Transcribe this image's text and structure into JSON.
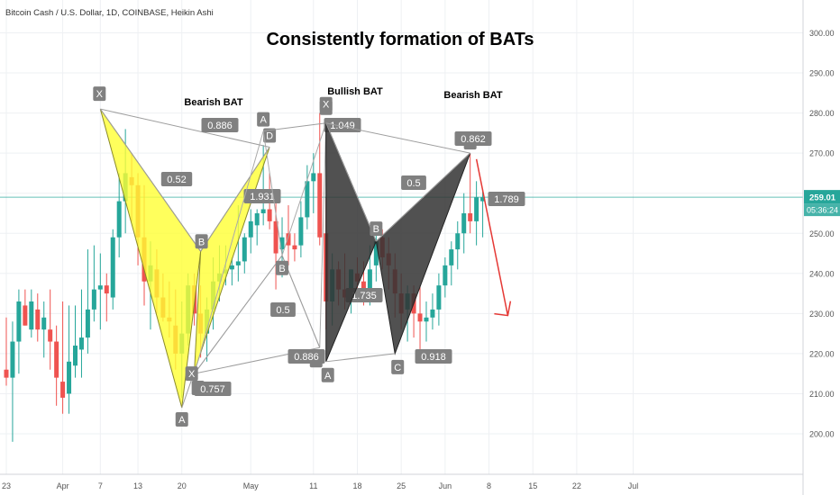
{
  "header": {
    "symbol_line": "Bitcoin Cash / U.S. Dollar, 1D, COINBASE, Heikin Ashi",
    "title": "Consistently formation of BATs"
  },
  "chart_data": {
    "type": "candlestick",
    "chart_style": "Heikin Ashi",
    "ylim": [
      191,
      309
    ],
    "y_axis_position": "right",
    "grid": true,
    "y_ticks": [
      200,
      210,
      220,
      230,
      240,
      250,
      260,
      270,
      280,
      290,
      300
    ],
    "y_tick_labels": [
      "200.00",
      "210.00",
      "220.00",
      "230.00",
      "240.00",
      "250.00",
      "260.00",
      "270.00",
      "280.00",
      "290.00",
      "300.00"
    ],
    "x_tick_labels": [
      {
        "label": "23",
        "date": "2019-03-23"
      },
      {
        "label": "Apr",
        "date": "2019-04-01"
      },
      {
        "label": "7",
        "date": "2019-04-07"
      },
      {
        "label": "13",
        "date": "2019-04-13"
      },
      {
        "label": "20",
        "date": "2019-04-20"
      },
      {
        "label": "May",
        "date": "2019-05-01"
      },
      {
        "label": "11",
        "date": "2019-05-11"
      },
      {
        "label": "18",
        "date": "2019-05-18"
      },
      {
        "label": "25",
        "date": "2019-05-25"
      },
      {
        "label": "Jun",
        "date": "2019-06-01"
      },
      {
        "label": "8",
        "date": "2019-06-08"
      },
      {
        "label": "15",
        "date": "2019-06-15"
      },
      {
        "label": "22",
        "date": "2019-06-22"
      },
      {
        "label": "Jul",
        "date": "2019-07-01"
      }
    ],
    "last_price": {
      "value": 259.01,
      "label": "259.01",
      "countdown": "05:36:24"
    },
    "up_color": "#26a69a",
    "down_color": "#ef5350",
    "candles": [
      {
        "date": "2019-03-23",
        "o": 216,
        "h": 229,
        "l": 212,
        "c": 214
      },
      {
        "date": "2019-03-24",
        "o": 214,
        "h": 228,
        "l": 198,
        "c": 223
      },
      {
        "date": "2019-03-25",
        "o": 223,
        "h": 236,
        "l": 215,
        "c": 233
      },
      {
        "date": "2019-03-26",
        "o": 232,
        "h": 236,
        "l": 227,
        "c": 227
      },
      {
        "date": "2019-03-27",
        "o": 226,
        "h": 236,
        "l": 224,
        "c": 233
      },
      {
        "date": "2019-03-28",
        "o": 231,
        "h": 235,
        "l": 223,
        "c": 226
      },
      {
        "date": "2019-03-29",
        "o": 226,
        "h": 233,
        "l": 219,
        "c": 229
      },
      {
        "date": "2019-03-30",
        "o": 226,
        "h": 236,
        "l": 216,
        "c": 223
      },
      {
        "date": "2019-03-31",
        "o": 223,
        "h": 227,
        "l": 207,
        "c": 214
      },
      {
        "date": "2019-04-01",
        "o": 213,
        "h": 233,
        "l": 205,
        "c": 209
      },
      {
        "date": "2019-04-02",
        "o": 210,
        "h": 232,
        "l": 205,
        "c": 218
      },
      {
        "date": "2019-04-03",
        "o": 217,
        "h": 232,
        "l": 214,
        "c": 222
      },
      {
        "date": "2019-04-04",
        "o": 221,
        "h": 236,
        "l": 214,
        "c": 224
      },
      {
        "date": "2019-04-05",
        "o": 224,
        "h": 246,
        "l": 220,
        "c": 231
      },
      {
        "date": "2019-04-06",
        "o": 231,
        "h": 247,
        "l": 228,
        "c": 236
      },
      {
        "date": "2019-04-07",
        "o": 236,
        "h": 245,
        "l": 226,
        "c": 237
      },
      {
        "date": "2019-04-08",
        "o": 237,
        "h": 240,
        "l": 228,
        "c": 235
      },
      {
        "date": "2019-04-09",
        "o": 234,
        "h": 251,
        "l": 231,
        "c": 249
      },
      {
        "date": "2019-04-10",
        "o": 249,
        "h": 265,
        "l": 244,
        "c": 258
      },
      {
        "date": "2019-04-11",
        "o": 258,
        "h": 276,
        "l": 250,
        "c": 265
      },
      {
        "date": "2019-04-12",
        "o": 264,
        "h": 270,
        "l": 253,
        "c": 262
      },
      {
        "date": "2019-04-13",
        "o": 262,
        "h": 265,
        "l": 242,
        "c": 249
      },
      {
        "date": "2019-04-14",
        "o": 249,
        "h": 262,
        "l": 232,
        "c": 238
      },
      {
        "date": "2019-04-15",
        "o": 238,
        "h": 248,
        "l": 226,
        "c": 242
      },
      {
        "date": "2019-04-16",
        "o": 241,
        "h": 246,
        "l": 230,
        "c": 234
      },
      {
        "date": "2019-04-17",
        "o": 234,
        "h": 240,
        "l": 228,
        "c": 229
      },
      {
        "date": "2019-04-18",
        "o": 229,
        "h": 238,
        "l": 224,
        "c": 228
      },
      {
        "date": "2019-04-19",
        "o": 227,
        "h": 236,
        "l": 216,
        "c": 220
      },
      {
        "date": "2019-04-20",
        "o": 220,
        "h": 233,
        "l": 209,
        "c": 225
      },
      {
        "date": "2019-04-21",
        "o": 225,
        "h": 240,
        "l": 222,
        "c": 237
      },
      {
        "date": "2019-04-22",
        "o": 237,
        "h": 240,
        "l": 227,
        "c": 230
      },
      {
        "date": "2019-04-23",
        "o": 230,
        "h": 237,
        "l": 219,
        "c": 225
      },
      {
        "date": "2019-04-24",
        "o": 225,
        "h": 234,
        "l": 218,
        "c": 231
      },
      {
        "date": "2019-04-25",
        "o": 231,
        "h": 244,
        "l": 226,
        "c": 238
      },
      {
        "date": "2019-04-26",
        "o": 238,
        "h": 247,
        "l": 233,
        "c": 240
      },
      {
        "date": "2019-04-27",
        "o": 240,
        "h": 247,
        "l": 237,
        "c": 241
      },
      {
        "date": "2019-04-28",
        "o": 241,
        "h": 244,
        "l": 237,
        "c": 242
      },
      {
        "date": "2019-04-29",
        "o": 242,
        "h": 257,
        "l": 238,
        "c": 243
      },
      {
        "date": "2019-04-30",
        "o": 243,
        "h": 250,
        "l": 240,
        "c": 249
      },
      {
        "date": "2019-05-01",
        "o": 249,
        "h": 256,
        "l": 245,
        "c": 253
      },
      {
        "date": "2019-05-02",
        "o": 252,
        "h": 256,
        "l": 247,
        "c": 255
      },
      {
        "date": "2019-05-03",
        "o": 255,
        "h": 272,
        "l": 252,
        "c": 256
      },
      {
        "date": "2019-05-04",
        "o": 256,
        "h": 265,
        "l": 251,
        "c": 253
      },
      {
        "date": "2019-05-05",
        "o": 253,
        "h": 258,
        "l": 236,
        "c": 245
      },
      {
        "date": "2019-05-06",
        "o": 246,
        "h": 254,
        "l": 239,
        "c": 249
      },
      {
        "date": "2019-05-07",
        "o": 250,
        "h": 257,
        "l": 242,
        "c": 247
      },
      {
        "date": "2019-05-08",
        "o": 247,
        "h": 250,
        "l": 243,
        "c": 246
      },
      {
        "date": "2019-05-09",
        "o": 247,
        "h": 258,
        "l": 244,
        "c": 254
      },
      {
        "date": "2019-05-10",
        "o": 254,
        "h": 267,
        "l": 251,
        "c": 263
      },
      {
        "date": "2019-05-11",
        "o": 263,
        "h": 270,
        "l": 255,
        "c": 265
      },
      {
        "date": "2019-05-12",
        "o": 265,
        "h": 280,
        "l": 247,
        "c": 249
      },
      {
        "date": "2019-05-13",
        "o": 250,
        "h": 259,
        "l": 226,
        "c": 233
      },
      {
        "date": "2019-05-14",
        "o": 233,
        "h": 245,
        "l": 227,
        "c": 241
      },
      {
        "date": "2019-05-15",
        "o": 241,
        "h": 243,
        "l": 232,
        "c": 236
      },
      {
        "date": "2019-05-16",
        "o": 236,
        "h": 245,
        "l": 231,
        "c": 234
      },
      {
        "date": "2019-05-17",
        "o": 234,
        "h": 241,
        "l": 230,
        "c": 241
      },
      {
        "date": "2019-05-18",
        "o": 240,
        "h": 244,
        "l": 235,
        "c": 238
      },
      {
        "date": "2019-05-19",
        "o": 238,
        "h": 243,
        "l": 232,
        "c": 235
      },
      {
        "date": "2019-05-20",
        "o": 235,
        "h": 247,
        "l": 232,
        "c": 241
      },
      {
        "date": "2019-05-21",
        "o": 242,
        "h": 252,
        "l": 238,
        "c": 248
      },
      {
        "date": "2019-05-22",
        "o": 249,
        "h": 251,
        "l": 241,
        "c": 244
      },
      {
        "date": "2019-05-23",
        "o": 245,
        "h": 249,
        "l": 236,
        "c": 242
      },
      {
        "date": "2019-05-24",
        "o": 241,
        "h": 245,
        "l": 229,
        "c": 235
      },
      {
        "date": "2019-05-25",
        "o": 235,
        "h": 240,
        "l": 226,
        "c": 230
      },
      {
        "date": "2019-05-26",
        "o": 231,
        "h": 237,
        "l": 223,
        "c": 235
      },
      {
        "date": "2019-05-27",
        "o": 235,
        "h": 237,
        "l": 224,
        "c": 230
      },
      {
        "date": "2019-05-28",
        "o": 230,
        "h": 237,
        "l": 221,
        "c": 228
      },
      {
        "date": "2019-05-29",
        "o": 228,
        "h": 233,
        "l": 223,
        "c": 229
      },
      {
        "date": "2019-05-30",
        "o": 229,
        "h": 235,
        "l": 226,
        "c": 231
      },
      {
        "date": "2019-05-31",
        "o": 231,
        "h": 240,
        "l": 227,
        "c": 237
      },
      {
        "date": "2019-06-01",
        "o": 237,
        "h": 244,
        "l": 234,
        "c": 242
      },
      {
        "date": "2019-06-02",
        "o": 242,
        "h": 248,
        "l": 237,
        "c": 246
      },
      {
        "date": "2019-06-03",
        "o": 246,
        "h": 253,
        "l": 241,
        "c": 250
      },
      {
        "date": "2019-06-04",
        "o": 250,
        "h": 260,
        "l": 245,
        "c": 255
      },
      {
        "date": "2019-06-05",
        "o": 255,
        "h": 270,
        "l": 250,
        "c": 253
      },
      {
        "date": "2019-06-06",
        "o": 253,
        "h": 263,
        "l": 247,
        "c": 259
      },
      {
        "date": "2019-06-07",
        "o": 258,
        "h": 261,
        "l": 249,
        "c": 259
      }
    ],
    "patterns": [
      {
        "name": "bearish-bat-1",
        "label": "Bearish BAT",
        "fill": "#ffff33",
        "edge": "#8a8a2a",
        "points": {
          "X": {
            "date": "2019-04-07",
            "y": 281
          },
          "A": {
            "date": "2019-04-20",
            "y": 206.5
          },
          "B": {
            "date": "2019-04-23",
            "y": 245.5
          },
          "C": {
            "date": "2019-04-22",
            "y": 215.5
          },
          "D": {
            "date": "2019-05-04",
            "y": 271.5
          }
        },
        "ratios": [
          {
            "text": "0.886",
            "between": [
              "X",
              "D"
            ]
          },
          {
            "text": "0.52",
            "between": [
              "X",
              "B"
            ]
          },
          {
            "text": "1.931",
            "between": [
              "B",
              "D"
            ]
          },
          {
            "text": "0.757",
            "between": [
              "A",
              "C"
            ]
          }
        ]
      },
      {
        "name": "bullish-bat",
        "label": "Bullish BAT",
        "fill": "none",
        "edge": "#aaaaaa",
        "points": {
          "X": {
            "date": "2019-04-22",
            "y": 215
          },
          "A": {
            "date": "2019-05-03",
            "y": 275.5
          },
          "B": {
            "date": "2019-05-06",
            "y": 244.5
          },
          "C": {
            "date": "2019-05-13",
            "y": 277.5
          },
          "D": {
            "date": "2019-05-12",
            "y": 221.5
          }
        },
        "ratios": [
          {
            "text": "0.886",
            "between": [
              "X",
              "D"
            ]
          },
          {
            "text": "0.5",
            "between": [
              "X",
              "B"
            ]
          },
          {
            "text": "1.049",
            "between": [
              "A",
              "C"
            ]
          },
          {
            "text": "1.735",
            "between": [
              "B",
              "D"
            ]
          }
        ]
      },
      {
        "name": "bearish-bat-2",
        "label": "Bearish BAT",
        "fill": "#333333",
        "edge": "#222222",
        "points": {
          "X": {
            "date": "2019-05-13",
            "y": 277.5
          },
          "A": {
            "date": "2019-05-13",
            "y": 218
          },
          "B": {
            "date": "2019-05-21",
            "y": 248
          },
          "C": {
            "date": "2019-05-24",
            "y": 220
          },
          "D": {
            "date": "2019-06-05",
            "y": 270
          }
        },
        "ratios": [
          {
            "text": "0.862",
            "between": [
              "X",
              "D"
            ]
          },
          {
            "text": "0.5",
            "between": [
              "X",
              "B"
            ]
          },
          {
            "text": "1.789",
            "between": [
              "B",
              "D"
            ]
          },
          {
            "text": "0.918",
            "between": [
              "A",
              "C"
            ]
          }
        ]
      }
    ],
    "projection_arrow": {
      "color": "#e53935",
      "from": {
        "date": "2019-06-06",
        "y": 268.5
      },
      "to": {
        "date": "2019-06-11",
        "y": 229.5
      }
    }
  }
}
